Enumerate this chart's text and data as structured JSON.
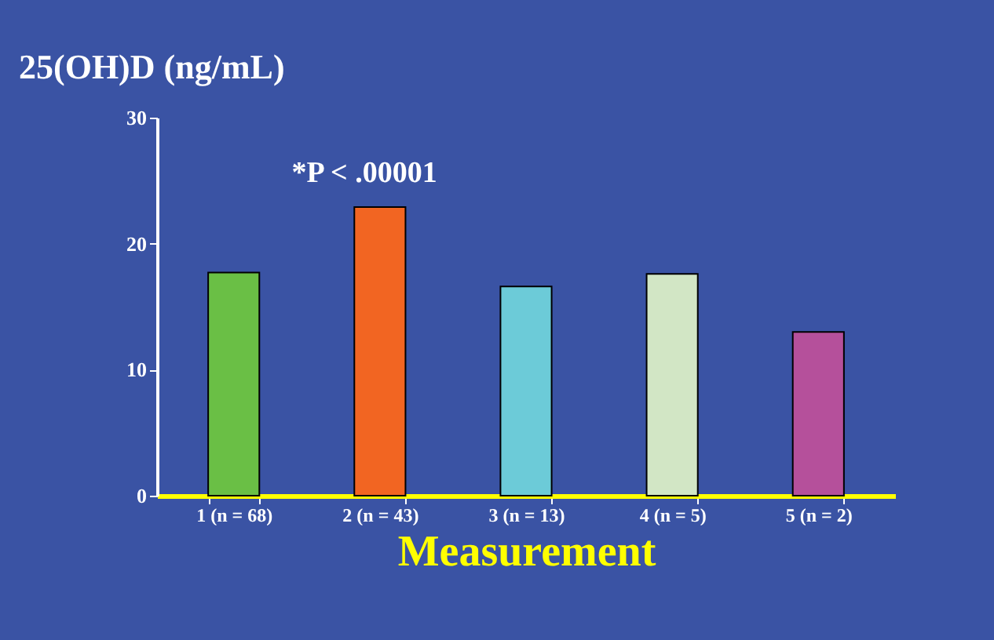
{
  "chart_data": {
    "type": "bar",
    "title": "25(OH)D (ng/mL)",
    "xlabel": "Measurement",
    "categories": [
      "1 (n = 68)",
      "2 (n = 43)",
      "3 (n = 13)",
      "4 (n = 5)",
      "5 (n = 2)"
    ],
    "values": [
      17.7,
      22.9,
      16.6,
      17.6,
      13.0
    ],
    "colors": [
      "#6abf45",
      "#f26522",
      "#6ccbd8",
      "#d2e6c5",
      "#b5509b"
    ],
    "ylim": [
      0,
      30
    ],
    "yticks": [
      0,
      10,
      20,
      30
    ],
    "grid": false,
    "legend": false,
    "annotations": [
      "*P < .00001"
    ]
  }
}
